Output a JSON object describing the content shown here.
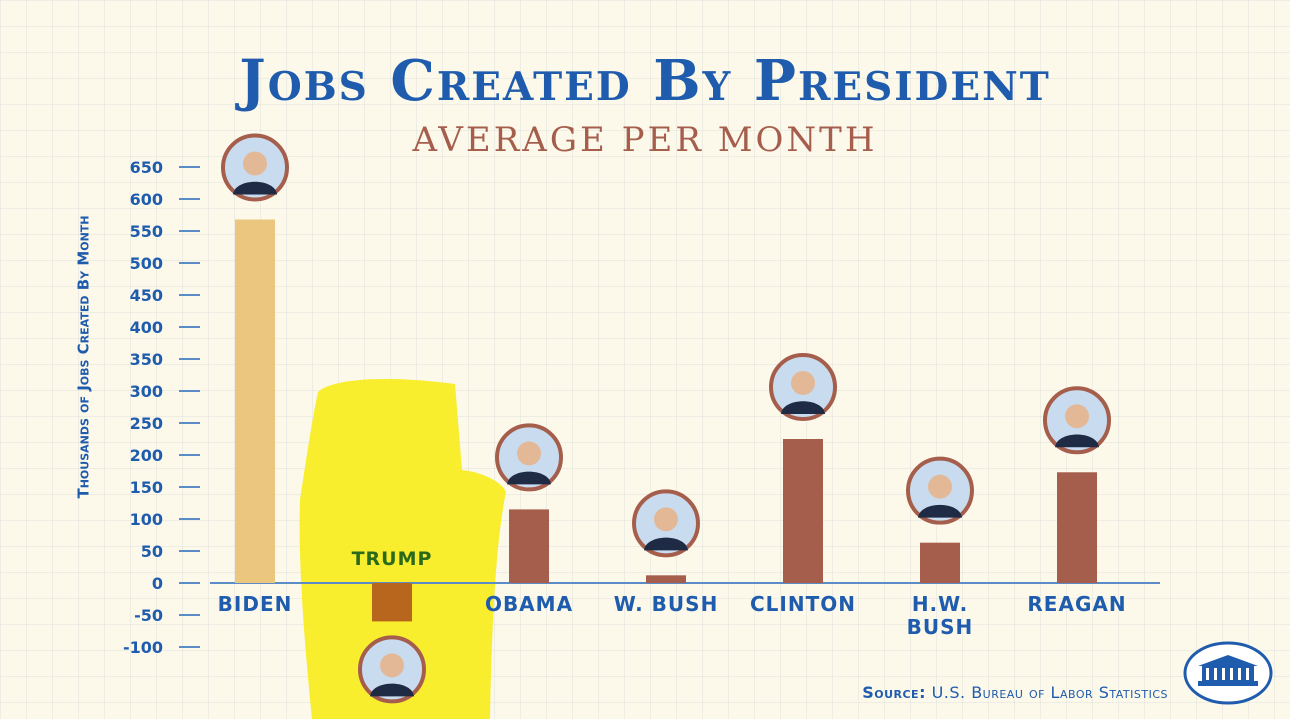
{
  "title": "Jobs Created By President",
  "subtitle": "AVERAGE PER MONTH",
  "source": {
    "label": "Source:",
    "text": "U.S. Bureau of Labor Statistics"
  },
  "colors": {
    "biden": "#ebc67f",
    "trump": "#b8651e",
    "others": "#a65e4c",
    "axis": "#1f5cad",
    "highlight": "#f7ec1a",
    "trump_label": "#2a6a1a"
  },
  "chart_data": {
    "type": "bar",
    "ylabel": "Thousands of Jobs Created By Month",
    "ylim": [
      -100,
      650
    ],
    "yticks": [
      "650",
      "600",
      "550",
      "500",
      "450",
      "400",
      "350",
      "300",
      "250",
      "200",
      "150",
      "100",
      "50",
      "0",
      "-50",
      "-100"
    ],
    "categories": [
      "BIDEN",
      "TRUMP",
      "OBAMA",
      "W. BUSH",
      "CLINTON",
      "H.W. BUSH",
      "REAGAN"
    ],
    "values": [
      568,
      -60,
      115,
      12,
      225,
      63,
      173
    ],
    "grid": true
  }
}
